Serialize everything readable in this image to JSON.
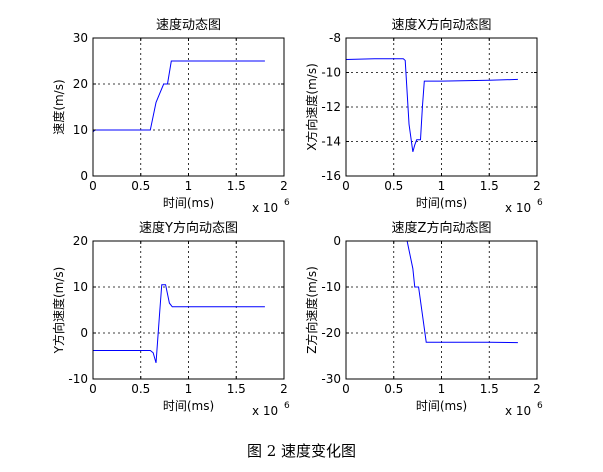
{
  "figure": {
    "caption": "图 2  速度变化图"
  },
  "chart_data": [
    {
      "type": "line",
      "title": "速度动态图",
      "xlabel": "时间(ms)",
      "ylabel": "速度(m/s)",
      "x_multiplier": "x 10",
      "x_multiplier_exp": "6",
      "xlim": [
        0,
        2
      ],
      "ylim": [
        0,
        30
      ],
      "xticks": [
        0,
        0.5,
        1,
        1.5,
        2
      ],
      "xtick_labels": [
        "0",
        "0.5",
        "1",
        "1.5",
        "2"
      ],
      "yticks": [
        0,
        10,
        20,
        30
      ],
      "ytick_labels": [
        "0",
        "10",
        "20",
        "30"
      ],
      "grid": true,
      "line_color": "#0000ff",
      "series": [
        {
          "x": [
            0,
            0.02,
            0.1,
            0.3,
            0.5,
            0.6,
            0.62,
            0.66,
            0.7,
            0.74,
            0.78,
            0.82,
            1.0,
            1.5,
            1.8
          ],
          "y": [
            9.6,
            10,
            10,
            10,
            10,
            10,
            12,
            16,
            18,
            20,
            20,
            25,
            25,
            25,
            25
          ]
        }
      ]
    },
    {
      "type": "line",
      "title": "速度X方向动态图",
      "xlabel": "时间(ms)",
      "ylabel": "X方向速度(m/s)",
      "x_multiplier": "x 10",
      "x_multiplier_exp": "6",
      "xlim": [
        0,
        2
      ],
      "ylim": [
        -16,
        -8
      ],
      "xticks": [
        0,
        0.5,
        1,
        1.5,
        2
      ],
      "xtick_labels": [
        "0",
        "0.5",
        "1",
        "1.5",
        "2"
      ],
      "yticks": [
        -16,
        -14,
        -12,
        -10,
        -8
      ],
      "ytick_labels": [
        "-16",
        "-14",
        "-12",
        "-10",
        "-8"
      ],
      "grid": true,
      "line_color": "#0000ff",
      "series": [
        {
          "x": [
            0,
            0.3,
            0.6,
            0.62,
            0.66,
            0.7,
            0.72,
            0.74,
            0.78,
            0.8,
            0.82,
            1.0,
            1.5,
            1.8
          ],
          "y": [
            -9.25,
            -9.2,
            -9.2,
            -9.3,
            -13.0,
            -14.6,
            -14.2,
            -13.9,
            -13.9,
            -12.0,
            -10.5,
            -10.5,
            -10.45,
            -10.4
          ]
        }
      ]
    },
    {
      "type": "line",
      "title": "速度Y方向动态图",
      "xlabel": "时间(ms)",
      "ylabel": "Y方向速度(m/s)",
      "x_multiplier": "x 10",
      "x_multiplier_exp": "6",
      "xlim": [
        0,
        2
      ],
      "ylim": [
        -10,
        20
      ],
      "xticks": [
        0,
        0.5,
        1,
        1.5,
        2
      ],
      "xtick_labels": [
        "0",
        "0.5",
        "1",
        "1.5",
        "2"
      ],
      "yticks": [
        -10,
        0,
        10,
        20
      ],
      "ytick_labels": [
        "-10",
        "0",
        "10",
        "20"
      ],
      "grid": true,
      "line_color": "#0000ff",
      "series": [
        {
          "x": [
            0,
            0.3,
            0.6,
            0.63,
            0.66,
            0.7,
            0.72,
            0.76,
            0.8,
            0.83,
            1.0,
            1.5,
            1.8
          ],
          "y": [
            -3.8,
            -3.8,
            -3.8,
            -4.3,
            -6.5,
            5.0,
            10.5,
            10.5,
            6.5,
            5.7,
            5.7,
            5.7,
            5.7
          ]
        }
      ]
    },
    {
      "type": "line",
      "title": "速度Z方向动态图",
      "xlabel": "时间(ms)",
      "ylabel": "Z方向速度(m/s)",
      "x_multiplier": "x 10",
      "x_multiplier_exp": "6",
      "xlim": [
        0,
        2
      ],
      "ylim": [
        -30,
        0
      ],
      "xticks": [
        0,
        0.5,
        1,
        1.5,
        2
      ],
      "xtick_labels": [
        "0",
        "0.5",
        "1",
        "1.5",
        "2"
      ],
      "yticks": [
        -30,
        -20,
        -10,
        0
      ],
      "ytick_labels": [
        "-30",
        "-20",
        "-10",
        "0"
      ],
      "grid": true,
      "line_color": "#0000ff",
      "series": [
        {
          "x": [
            0,
            0.3,
            0.6,
            0.64,
            0.7,
            0.72,
            0.76,
            0.8,
            0.84,
            1.0,
            1.5,
            1.8
          ],
          "y": [
            0,
            0,
            0,
            0,
            -6.0,
            -10.0,
            -10.0,
            -16.0,
            -22.0,
            -22.0,
            -22.0,
            -22.1
          ]
        }
      ]
    }
  ]
}
